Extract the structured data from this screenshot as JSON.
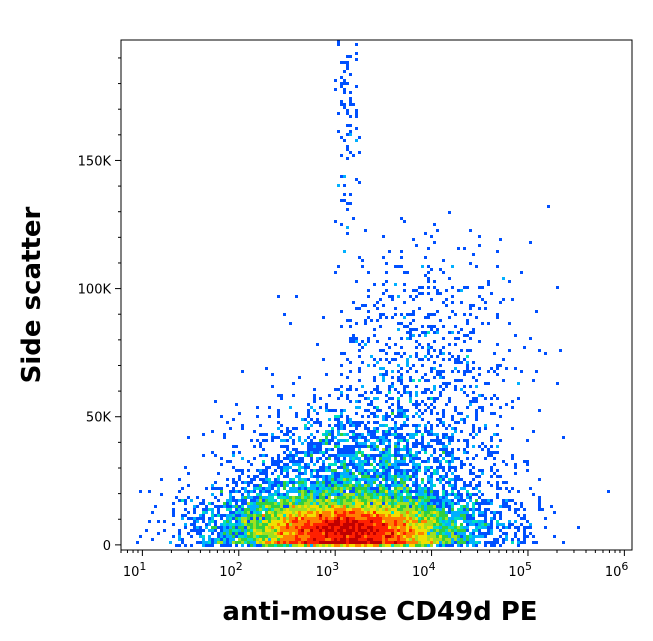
{
  "chart_data": {
    "type": "scatter",
    "title": "",
    "xlabel": "anti-mouse CD49d PE",
    "ylabel": "Side scatter",
    "x_scale": "log",
    "xlim": [
      6,
      1200000
    ],
    "ylim": [
      -2000,
      197000
    ],
    "grid": false,
    "legend": "none",
    "color_map": "density (blue → cyan → green → yellow → red)",
    "x_ticks": [
      {
        "value": 10,
        "base": "10",
        "exp": "1"
      },
      {
        "value": 100,
        "base": "10",
        "exp": "2"
      },
      {
        "value": 1000,
        "base": "10",
        "exp": "3"
      },
      {
        "value": 10000,
        "base": "10",
        "exp": "4"
      },
      {
        "value": 100000,
        "base": "10",
        "exp": "5"
      },
      {
        "value": 1000000,
        "base": "10",
        "exp": "6"
      }
    ],
    "y_ticks": [
      {
        "value": 0,
        "label": "0"
      },
      {
        "value": 50000,
        "label": "50K"
      },
      {
        "value": 100000,
        "label": "100K"
      },
      {
        "value": 150000,
        "label": "150K"
      }
    ],
    "populations": [
      {
        "x_center": 1400,
        "x_spread_decades": 0.45,
        "y_center": 6000,
        "y_spread": 4500,
        "count": 9000
      },
      {
        "x_center": 1500,
        "x_spread_decades": 0.7,
        "y_center": 9000,
        "y_spread": 8000,
        "count": 6000
      },
      {
        "x_center": 2000,
        "x_spread_decades": 0.6,
        "y_center": 30000,
        "y_spread": 14000,
        "count": 2200
      },
      {
        "x_center": 9000,
        "x_spread_decades": 0.5,
        "y_center": 70000,
        "y_spread": 25000,
        "count": 700
      },
      {
        "x_center": 300,
        "x_spread_decades": 0.35,
        "y_center": 8000,
        "y_spread": 7000,
        "count": 700
      },
      {
        "x_center": 1300,
        "x_spread_decades": 0.06,
        "y_center": 160000,
        "y_spread": 25000,
        "count": 90
      }
    ],
    "colors": [
      "#0000ff",
      "#0050ff",
      "#00b0ff",
      "#00e0c0",
      "#30d040",
      "#a0e020",
      "#f0e000",
      "#ff8000",
      "#ff2000",
      "#c00000"
    ]
  }
}
